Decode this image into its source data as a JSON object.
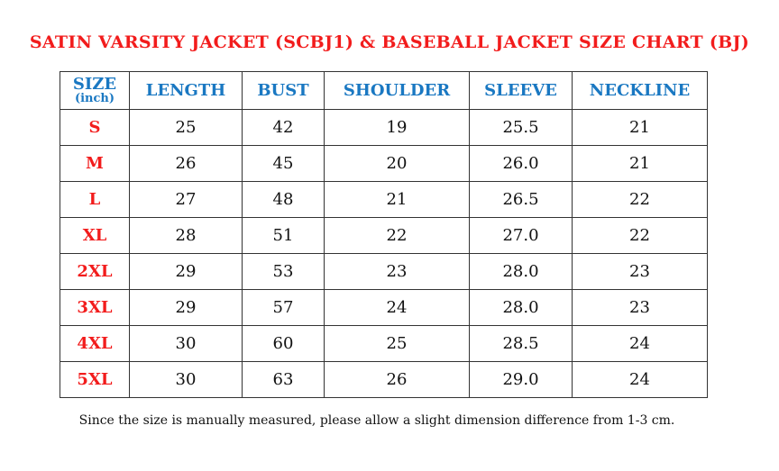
{
  "title": "SATIN VARSITY JACKET (SCBJ1) & BASEBALL JACKET SIZE CHART (BJ)",
  "headers": {
    "size": "SIZE",
    "size_unit": "(inch)",
    "cols": [
      "LENGTH",
      "BUST",
      "SHOULDER",
      "SLEEVE",
      "NECKLINE"
    ]
  },
  "rows": [
    {
      "size": "S",
      "values": [
        "25",
        "42",
        "19",
        "25.5",
        "21"
      ]
    },
    {
      "size": "M",
      "values": [
        "26",
        "45",
        "20",
        "26.0",
        "21"
      ]
    },
    {
      "size": "L",
      "values": [
        "27",
        "48",
        "21",
        "26.5",
        "22"
      ]
    },
    {
      "size": "XL",
      "values": [
        "28",
        "51",
        "22",
        "27.0",
        "22"
      ]
    },
    {
      "size": "2XL",
      "values": [
        "29",
        "53",
        "23",
        "28.0",
        "23"
      ]
    },
    {
      "size": "3XL",
      "values": [
        "29",
        "57",
        "24",
        "28.0",
        "23"
      ]
    },
    {
      "size": "4XL",
      "values": [
        "30",
        "60",
        "25",
        "28.5",
        "24"
      ]
    },
    {
      "size": "5XL",
      "values": [
        "30",
        "63",
        "26",
        "29.0",
        "24"
      ]
    }
  ],
  "note": "Since the size is manually measured, please allow a slight dimension difference from 1-3 cm.",
  "colors": {
    "title": "#f21c1c",
    "header": "#1a78c2",
    "size": "#f21c1c"
  }
}
